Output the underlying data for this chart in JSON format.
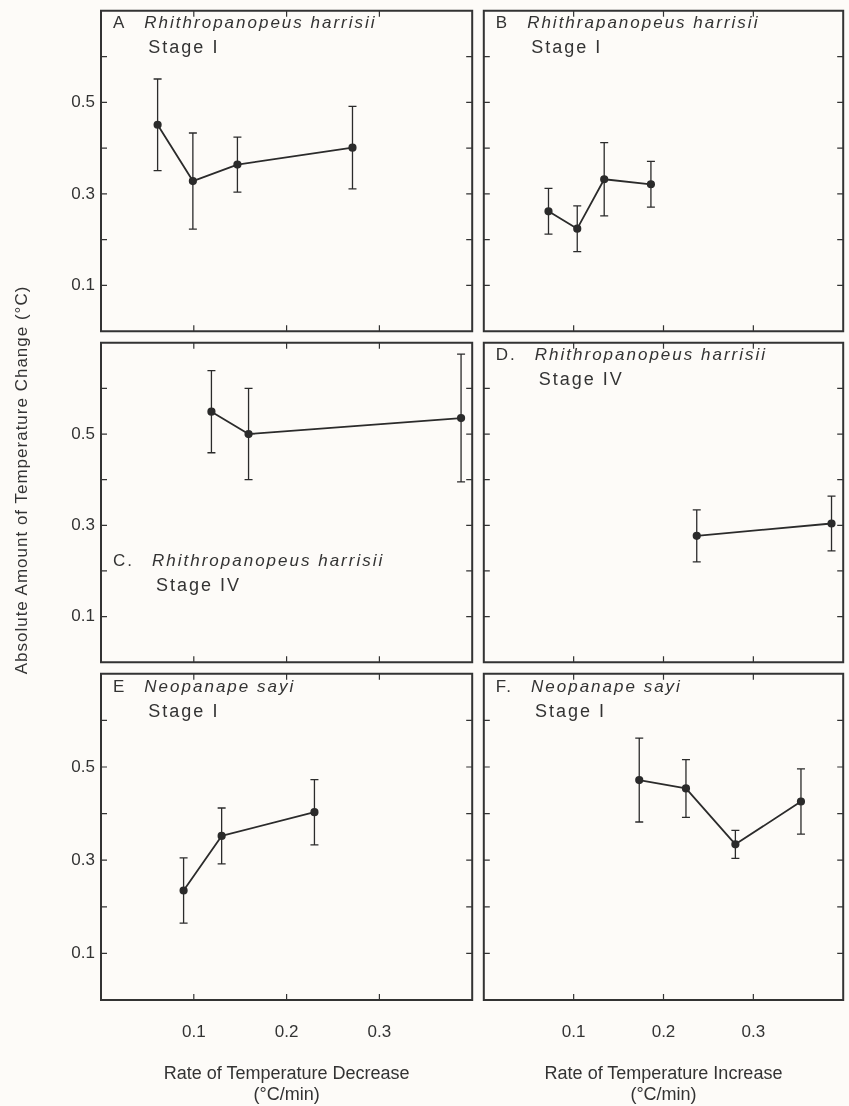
{
  "chart_data": [
    {
      "type": "line",
      "annotations": [
        "A",
        "Rhithropanopeus harrisii",
        "Stage I"
      ],
      "x": [
        0.061,
        0.099,
        0.147,
        0.271
      ],
      "values": [
        0.451,
        0.328,
        0.364,
        0.401
      ],
      "errors": [
        0.1,
        0.105,
        0.06,
        0.09
      ],
      "color": "#2b2b2b",
      "marker": "circle",
      "xlim": [
        0,
        0.4
      ],
      "ylim": [
        0,
        0.7
      ],
      "xticks": [
        0.1,
        0.2,
        0.3
      ],
      "yticks": [
        0.1,
        {
          "value": 0.2,
          "label": null
        },
        0.3,
        {
          "value": 0.4,
          "label": null
        },
        0.5,
        {
          "value": 0.6,
          "label": null
        }
      ],
      "tick_labels": "y"
    },
    {
      "type": "line",
      "annotations": [
        "B",
        "Rhithrapanopeus harrisii",
        "Stage I"
      ],
      "x": [
        0.072,
        0.104,
        0.134,
        0.186
      ],
      "values": [
        0.262,
        0.224,
        0.332,
        0.321
      ],
      "errors": [
        0.05,
        0.05,
        0.08,
        0.05
      ],
      "color": "#2b2b2b",
      "marker": "circle",
      "xlim": [
        0,
        0.4
      ],
      "ylim": [
        0,
        0.7
      ],
      "xticks": [
        0.1,
        0.2,
        0.3
      ],
      "yticks": [
        0.1,
        {
          "value": 0.2,
          "label": null
        },
        0.3,
        {
          "value": 0.4,
          "label": null
        },
        0.5,
        {
          "value": 0.6,
          "label": null
        }
      ],
      "tick_labels": false
    },
    {
      "type": "line",
      "ylabel": "Absolute Amount of Temperature Change (°C)",
      "annotations": [
        "C.",
        "Rhithropanopeus harrisii",
        "Stage IV"
      ],
      "x": [
        0.119,
        0.159,
        0.388
      ],
      "values": [
        0.549,
        0.5,
        0.535
      ],
      "errors": [
        0.09,
        0.1,
        0.14
      ],
      "color": "#2b2b2b",
      "marker": "circle",
      "xlim": [
        0,
        0.4
      ],
      "ylim": [
        0,
        0.7
      ],
      "xticks": [
        0.1,
        0.2,
        0.3
      ],
      "yticks": [
        0.1,
        {
          "value": 0.2,
          "label": null
        },
        0.3,
        {
          "value": 0.4,
          "label": null
        },
        0.5,
        {
          "value": 0.6,
          "label": null
        }
      ],
      "tick_labels": "y"
    },
    {
      "type": "line",
      "annotations": [
        "D.",
        "Rhithropanopeus harrisii",
        "Stage IV"
      ],
      "x": [
        0.237,
        0.387
      ],
      "values": [
        0.277,
        0.304
      ],
      "errors": [
        0.057,
        0.06
      ],
      "color": "#2b2b2b",
      "marker": "circle",
      "xlim": [
        0,
        0.4
      ],
      "ylim": [
        0,
        0.7
      ],
      "xticks": [
        0.1,
        0.2,
        0.3
      ],
      "yticks": [
        0.1,
        {
          "value": 0.2,
          "label": null
        },
        0.3,
        {
          "value": 0.4,
          "label": null
        },
        0.5,
        {
          "value": 0.6,
          "label": null
        }
      ],
      "tick_labels": false
    },
    {
      "type": "line",
      "xlabel": "Rate of Temperature Decrease (°C/min)",
      "annotations": [
        "E",
        "Neopanape sayi",
        "Stage I"
      ],
      "x": [
        0.089,
        0.13,
        0.23
      ],
      "values": [
        0.235,
        0.352,
        0.403
      ],
      "errors": [
        0.07,
        0.06,
        0.07
      ],
      "color": "#2b2b2b",
      "marker": "circle",
      "xlim": [
        0,
        0.4
      ],
      "ylim": [
        0,
        0.7
      ],
      "xticks": [
        0.1,
        0.2,
        0.3
      ],
      "yticks": [
        0.1,
        {
          "value": 0.2,
          "label": null
        },
        0.3,
        {
          "value": 0.4,
          "label": null
        },
        0.5,
        {
          "value": 0.6,
          "label": null
        }
      ]
    },
    {
      "type": "line",
      "xlabel": "Rate of Temperature Increase (°C/min)",
      "annotations": [
        "F.",
        "Neopanape sayi",
        "Stage I"
      ],
      "x": [
        0.173,
        0.225,
        0.28,
        0.353
      ],
      "values": [
        0.472,
        0.454,
        0.334,
        0.426
      ],
      "errors": [
        0.09,
        0.062,
        0.03,
        0.07
      ],
      "color": "#2b2b2b",
      "marker": "circle",
      "xlim": [
        0,
        0.4
      ],
      "ylim": [
        0,
        0.7
      ],
      "xticks": [
        0.1,
        0.2,
        0.3
      ],
      "yticks": [
        0.1,
        {
          "value": 0.2,
          "label": null
        },
        0.3,
        {
          "value": 0.4,
          "label": null
        },
        0.5,
        {
          "value": 0.6,
          "label": null
        }
      ],
      "tick_labels": "x"
    }
  ]
}
